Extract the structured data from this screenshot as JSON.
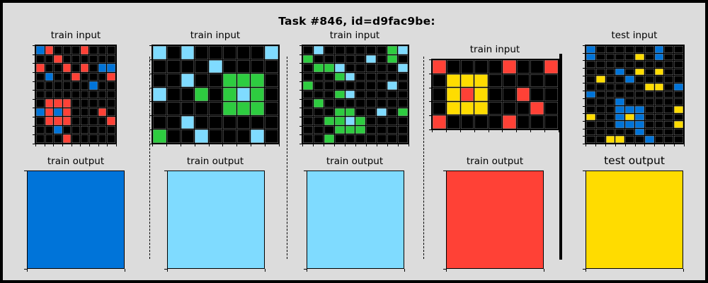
{
  "title": "Task #846, id=d9fac9be:",
  "palette": {
    "0": "#000000",
    "1": "#0074D9",
    "2": "#FF4136",
    "3": "#2ECC40",
    "4": "#FFDC00",
    "8": "#7FDBFF"
  },
  "train_input_label": "train input",
  "train_output_label": "train output",
  "test_input_label": "test input",
  "test_output_label": "test output",
  "train": [
    {
      "input": [
        [
          1,
          2,
          0,
          0,
          0,
          2,
          0,
          0,
          0
        ],
        [
          0,
          0,
          2,
          0,
          0,
          0,
          0,
          0,
          0
        ],
        [
          2,
          0,
          0,
          2,
          0,
          2,
          0,
          1,
          1
        ],
        [
          0,
          1,
          0,
          0,
          2,
          0,
          0,
          0,
          2
        ],
        [
          0,
          0,
          0,
          0,
          0,
          0,
          1,
          0,
          0
        ],
        [
          0,
          0,
          0,
          0,
          0,
          0,
          0,
          0,
          0
        ],
        [
          0,
          2,
          2,
          2,
          0,
          0,
          0,
          0,
          0
        ],
        [
          1,
          2,
          1,
          2,
          0,
          0,
          0,
          2,
          0
        ],
        [
          0,
          2,
          2,
          2,
          0,
          0,
          0,
          0,
          2
        ],
        [
          0,
          0,
          1,
          0,
          0,
          0,
          0,
          0,
          0
        ],
        [
          0,
          0,
          0,
          2,
          0,
          0,
          0,
          0,
          0
        ]
      ],
      "output": [
        [
          1
        ]
      ]
    },
    {
      "input": [
        [
          8,
          0,
          8,
          0,
          0,
          0,
          0,
          0,
          8
        ],
        [
          0,
          0,
          0,
          0,
          8,
          0,
          0,
          0,
          0
        ],
        [
          0,
          0,
          8,
          0,
          0,
          3,
          3,
          3,
          0
        ],
        [
          8,
          0,
          0,
          3,
          0,
          3,
          8,
          3,
          0
        ],
        [
          0,
          0,
          0,
          0,
          0,
          3,
          3,
          3,
          0
        ],
        [
          0,
          0,
          8,
          0,
          0,
          0,
          0,
          0,
          0
        ],
        [
          3,
          0,
          0,
          8,
          0,
          0,
          0,
          8,
          0
        ]
      ],
      "output": [
        [
          8
        ]
      ]
    },
    {
      "input": [
        [
          0,
          8,
          0,
          0,
          0,
          0,
          0,
          0,
          3,
          8
        ],
        [
          3,
          0,
          0,
          0,
          0,
          0,
          8,
          0,
          3,
          0
        ],
        [
          0,
          3,
          3,
          8,
          0,
          0,
          0,
          0,
          0,
          8
        ],
        [
          0,
          0,
          0,
          3,
          8,
          0,
          0,
          0,
          0,
          0
        ],
        [
          3,
          0,
          0,
          0,
          0,
          0,
          0,
          0,
          8,
          0
        ],
        [
          0,
          0,
          0,
          3,
          8,
          0,
          0,
          0,
          0,
          0
        ],
        [
          0,
          3,
          0,
          0,
          0,
          0,
          0,
          0,
          0,
          0
        ],
        [
          0,
          0,
          0,
          3,
          3,
          0,
          0,
          8,
          0,
          3
        ],
        [
          0,
          0,
          3,
          3,
          8,
          3,
          0,
          0,
          0,
          0
        ],
        [
          0,
          0,
          0,
          3,
          3,
          3,
          0,
          0,
          0,
          0
        ],
        [
          0,
          0,
          3,
          0,
          0,
          0,
          0,
          0,
          0,
          0
        ]
      ],
      "output": [
        [
          8
        ]
      ]
    },
    {
      "input": [
        [
          2,
          0,
          0,
          0,
          0,
          2,
          0,
          0,
          2
        ],
        [
          0,
          4,
          4,
          4,
          0,
          0,
          0,
          0,
          0
        ],
        [
          0,
          4,
          2,
          4,
          0,
          0,
          2,
          0,
          0
        ],
        [
          0,
          4,
          4,
          4,
          0,
          0,
          0,
          2,
          0
        ],
        [
          2,
          0,
          0,
          0,
          0,
          2,
          0,
          0,
          0
        ]
      ],
      "output": [
        [
          2
        ]
      ]
    }
  ],
  "test": {
    "input": [
      [
        1,
        0,
        0,
        0,
        0,
        0,
        0,
        1,
        0,
        0
      ],
      [
        1,
        0,
        0,
        0,
        0,
        4,
        0,
        1,
        0,
        0
      ],
      [
        0,
        0,
        0,
        0,
        0,
        0,
        0,
        0,
        0,
        0
      ],
      [
        0,
        0,
        0,
        1,
        0,
        4,
        0,
        4,
        0,
        0
      ],
      [
        0,
        4,
        0,
        0,
        1,
        0,
        0,
        0,
        0,
        0
      ],
      [
        0,
        0,
        0,
        0,
        0,
        0,
        4,
        4,
        0,
        1
      ],
      [
        1,
        0,
        0,
        0,
        0,
        0,
        0,
        0,
        0,
        0
      ],
      [
        0,
        0,
        0,
        1,
        0,
        0,
        0,
        0,
        0,
        0
      ],
      [
        0,
        0,
        0,
        1,
        1,
        1,
        0,
        0,
        0,
        4
      ],
      [
        4,
        0,
        0,
        1,
        4,
        1,
        0,
        0,
        0,
        0
      ],
      [
        0,
        0,
        0,
        1,
        1,
        1,
        0,
        0,
        0,
        4
      ],
      [
        0,
        0,
        0,
        0,
        0,
        1,
        0,
        0,
        0,
        0
      ],
      [
        0,
        0,
        4,
        4,
        0,
        0,
        1,
        0,
        0,
        0
      ]
    ],
    "output": [
      [
        4
      ]
    ]
  }
}
